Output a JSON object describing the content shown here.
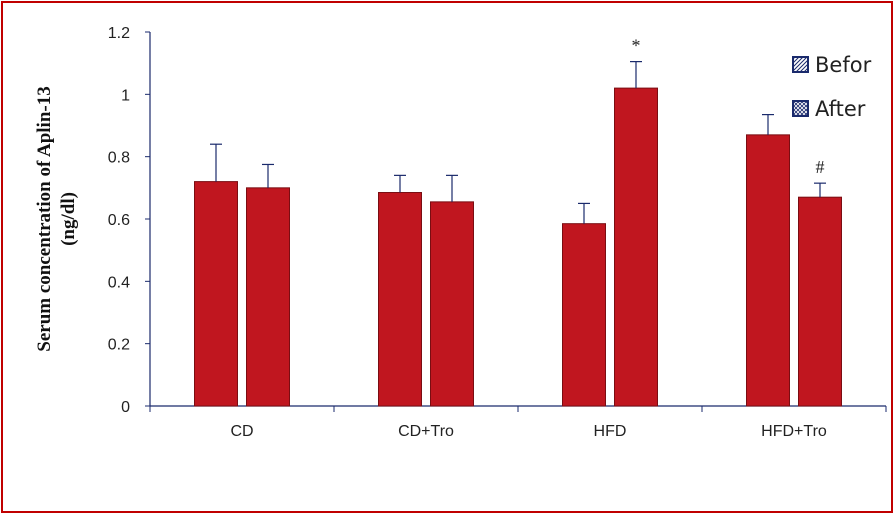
{
  "chart_data": {
    "type": "bar",
    "title": "",
    "xlabel": "",
    "ylabel_lines": [
      "Serum concentration of Aplin-13",
      "(ng/dl)"
    ],
    "ylim": [
      0,
      1.2
    ],
    "yticks": [
      "0",
      "0.2",
      "0.4",
      "0.6",
      "0.8",
      "1",
      "1.2"
    ],
    "categories": [
      "CD",
      "CD+Tro",
      "HFD",
      "HFD+Tro"
    ],
    "series": [
      {
        "name": "Befor",
        "values": [
          0.72,
          0.685,
          0.585,
          0.87
        ],
        "errors": [
          0.12,
          0.055,
          0.065,
          0.065
        ]
      },
      {
        "name": "After",
        "values": [
          0.7,
          0.655,
          1.02,
          0.67
        ],
        "errors": [
          0.075,
          0.085,
          0.085,
          0.045
        ]
      }
    ],
    "annotations": [
      {
        "text": "*",
        "category": "HFD",
        "series": "After"
      },
      {
        "text": "#",
        "category": "HFD+Tro",
        "series": "After"
      }
    ],
    "legend_position": "top-right",
    "grid": false,
    "colors": {
      "bar": "#c0161f",
      "bar_stroke": "#7a0d12",
      "frame": "#c00000",
      "axis": "#1a2a6c"
    }
  }
}
